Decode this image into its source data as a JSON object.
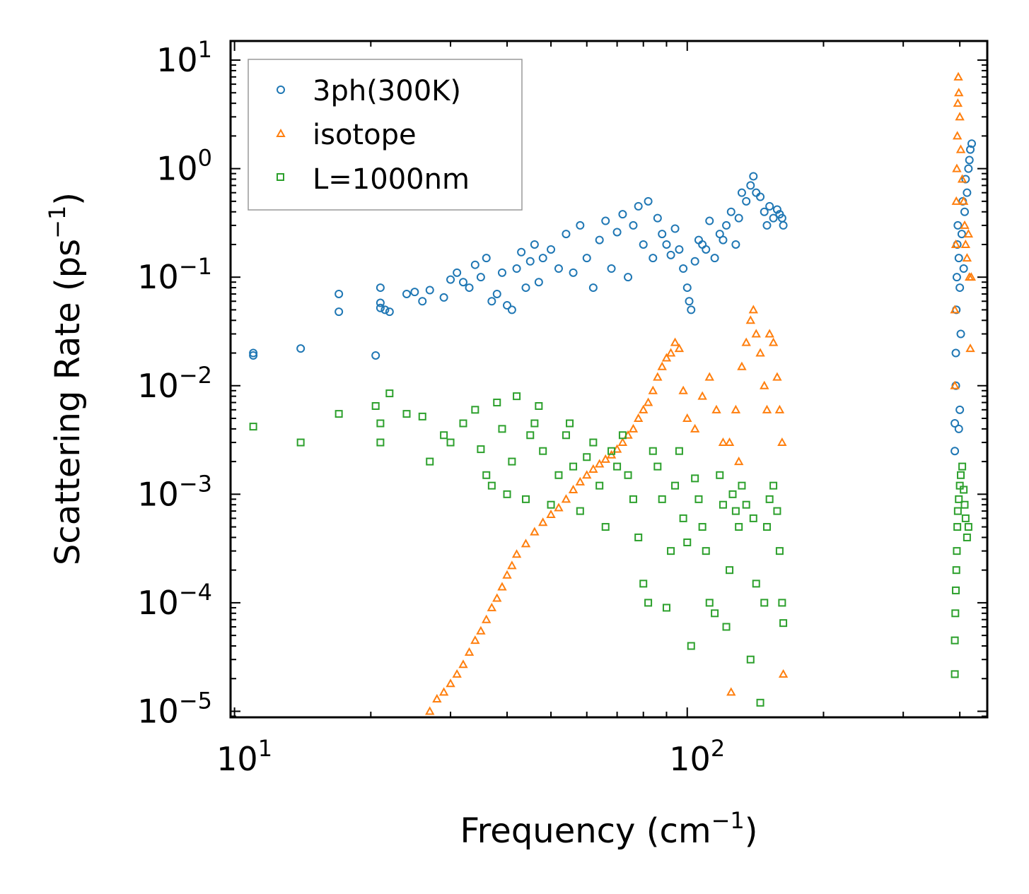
{
  "chart_data": {
    "type": "scatter",
    "title": "",
    "xlabel": "Frequency (cm",
    "xlabel_sup": "−1",
    "xlabel_end": ")",
    "ylabel": "Scattering Rate (ps",
    "ylabel_sup": "−1",
    "ylabel_end": ")",
    "xscale": "log",
    "yscale": "log",
    "xlim": [
      9.8,
      460
    ],
    "ylim": [
      8.8e-06,
      15
    ],
    "grid": false,
    "legend_position": "top-left",
    "x_ticks": [
      {
        "value": 10,
        "base": "10",
        "exp": "1"
      },
      {
        "value": 100,
        "base": "10",
        "exp": "2"
      }
    ],
    "y_ticks": [
      {
        "value": 10,
        "base": "10",
        "exp": "1"
      },
      {
        "value": 1,
        "base": "10",
        "exp": "0"
      },
      {
        "value": 0.1,
        "base": "10",
        "exp": "−1"
      },
      {
        "value": 0.01,
        "base": "10",
        "exp": "−2"
      },
      {
        "value": 0.001,
        "base": "10",
        "exp": "−3"
      },
      {
        "value": 0.0001,
        "base": "10",
        "exp": "−4"
      },
      {
        "value": 1e-05,
        "base": "10",
        "exp": "−5"
      }
    ],
    "series": [
      {
        "name": "3ph(300K)",
        "marker": "circle",
        "color": "#1f77b4",
        "points": [
          [
            11,
            0.019
          ],
          [
            11,
            0.02
          ],
          [
            14,
            0.022
          ],
          [
            17,
            0.048
          ],
          [
            17,
            0.07
          ],
          [
            20.5,
            0.019
          ],
          [
            21,
            0.052
          ],
          [
            21,
            0.058
          ],
          [
            21,
            0.08
          ],
          [
            21.5,
            0.05
          ],
          [
            22,
            0.048
          ],
          [
            24,
            0.07
          ],
          [
            25,
            0.073
          ],
          [
            26,
            0.06
          ],
          [
            27,
            0.076
          ],
          [
            29,
            0.065
          ],
          [
            30,
            0.095
          ],
          [
            31,
            0.11
          ],
          [
            32,
            0.09
          ],
          [
            33,
            0.08
          ],
          [
            34,
            0.13
          ],
          [
            35,
            0.1
          ],
          [
            36,
            0.15
          ],
          [
            37,
            0.06
          ],
          [
            38,
            0.07
          ],
          [
            39,
            0.11
          ],
          [
            40,
            0.055
          ],
          [
            41,
            0.05
          ],
          [
            42,
            0.12
          ],
          [
            43,
            0.17
          ],
          [
            44,
            0.08
          ],
          [
            45,
            0.14
          ],
          [
            46,
            0.2
          ],
          [
            47,
            0.09
          ],
          [
            48,
            0.15
          ],
          [
            50,
            0.18
          ],
          [
            52,
            0.12
          ],
          [
            54,
            0.25
          ],
          [
            56,
            0.11
          ],
          [
            58,
            0.3
          ],
          [
            60,
            0.15
          ],
          [
            62,
            0.08
          ],
          [
            64,
            0.22
          ],
          [
            66,
            0.33
          ],
          [
            68,
            0.12
          ],
          [
            70,
            0.26
          ],
          [
            72,
            0.38
          ],
          [
            74,
            0.1
          ],
          [
            76,
            0.3
          ],
          [
            78,
            0.45
          ],
          [
            80,
            0.2
          ],
          [
            82,
            0.5
          ],
          [
            84,
            0.15
          ],
          [
            86,
            0.35
          ],
          [
            88,
            0.25
          ],
          [
            90,
            0.2
          ],
          [
            92,
            0.16
          ],
          [
            94,
            0.28
          ],
          [
            96,
            0.18
          ],
          [
            98,
            0.12
          ],
          [
            100,
            0.08
          ],
          [
            101,
            0.06
          ],
          [
            102,
            0.05
          ],
          [
            104,
            0.14
          ],
          [
            106,
            0.22
          ],
          [
            108,
            0.2
          ],
          [
            110,
            0.18
          ],
          [
            112,
            0.33
          ],
          [
            115,
            0.15
          ],
          [
            118,
            0.25
          ],
          [
            120,
            0.22
          ],
          [
            122,
            0.3
          ],
          [
            125,
            0.4
          ],
          [
            128,
            0.2
          ],
          [
            130,
            0.35
          ],
          [
            132,
            0.6
          ],
          [
            135,
            0.5
          ],
          [
            138,
            0.7
          ],
          [
            140,
            0.85
          ],
          [
            142,
            0.6
          ],
          [
            145,
            0.55
          ],
          [
            148,
            0.4
          ],
          [
            150,
            0.3
          ],
          [
            152,
            0.45
          ],
          [
            155,
            0.35
          ],
          [
            158,
            0.42
          ],
          [
            160,
            0.38
          ],
          [
            162,
            0.35
          ],
          [
            163,
            0.3
          ],
          [
            390,
            0.0025
          ],
          [
            390,
            0.0045
          ],
          [
            392,
            0.01
          ],
          [
            392,
            0.02
          ],
          [
            393,
            0.05
          ],
          [
            394,
            0.1
          ],
          [
            395,
            0.2
          ],
          [
            396,
            0.3
          ],
          [
            398,
            0.004
          ],
          [
            398,
            0.15
          ],
          [
            400,
            0.006
          ],
          [
            400,
            0.08
          ],
          [
            402,
            0.03
          ],
          [
            404,
            0.25
          ],
          [
            406,
            0.5
          ],
          [
            408,
            0.12
          ],
          [
            410,
            0.4
          ],
          [
            412,
            0.8
          ],
          [
            415,
            0.6
          ],
          [
            418,
            1.0
          ],
          [
            420,
            1.2
          ],
          [
            422,
            1.5
          ],
          [
            425,
            1.7
          ]
        ]
      },
      {
        "name": "isotope",
        "marker": "triangle",
        "color": "#ff7f0e",
        "points": [
          [
            27,
            1e-05
          ],
          [
            28,
            1.3e-05
          ],
          [
            29,
            1.5e-05
          ],
          [
            30,
            1.8e-05
          ],
          [
            31,
            2.2e-05
          ],
          [
            32,
            2.7e-05
          ],
          [
            33,
            3.5e-05
          ],
          [
            34,
            4.5e-05
          ],
          [
            35,
            5.5e-05
          ],
          [
            36,
            7e-05
          ],
          [
            37,
            9e-05
          ],
          [
            38,
            0.00011
          ],
          [
            39,
            0.00014
          ],
          [
            40,
            0.00018
          ],
          [
            41,
            0.00022
          ],
          [
            42,
            0.00028
          ],
          [
            44,
            0.00035
          ],
          [
            46,
            0.00045
          ],
          [
            48,
            0.00055
          ],
          [
            50,
            0.00065
          ],
          [
            52,
            0.00075
          ],
          [
            54,
            0.0009
          ],
          [
            56,
            0.0011
          ],
          [
            58,
            0.0013
          ],
          [
            60,
            0.0015
          ],
          [
            62,
            0.0017
          ],
          [
            64,
            0.0019
          ],
          [
            66,
            0.0021
          ],
          [
            68,
            0.0023
          ],
          [
            70,
            0.0026
          ],
          [
            72,
            0.003
          ],
          [
            74,
            0.0035
          ],
          [
            76,
            0.004
          ],
          [
            78,
            0.005
          ],
          [
            80,
            0.006
          ],
          [
            82,
            0.007
          ],
          [
            84,
            0.009
          ],
          [
            86,
            0.012
          ],
          [
            88,
            0.015
          ],
          [
            90,
            0.018
          ],
          [
            92,
            0.02
          ],
          [
            94,
            0.025
          ],
          [
            96,
            0.022
          ],
          [
            98,
            0.009
          ],
          [
            100,
            0.005
          ],
          [
            104,
            0.004
          ],
          [
            108,
            0.008
          ],
          [
            112,
            0.012
          ],
          [
            116,
            0.006
          ],
          [
            120,
            0.003
          ],
          [
            124,
            0.003
          ],
          [
            128,
            0.006
          ],
          [
            130,
            0.002
          ],
          [
            132,
            0.015
          ],
          [
            135,
            0.025
          ],
          [
            138,
            0.04
          ],
          [
            140,
            0.05
          ],
          [
            142,
            0.03
          ],
          [
            145,
            0.02
          ],
          [
            148,
            0.01
          ],
          [
            150,
            0.006
          ],
          [
            152,
            0.03
          ],
          [
            155,
            0.025
          ],
          [
            158,
            0.012
          ],
          [
            160,
            0.006
          ],
          [
            162,
            0.003
          ],
          [
            163,
            2.2e-05
          ],
          [
            125,
            1.5e-05
          ],
          [
            390,
            0.01
          ],
          [
            390,
            0.05
          ],
          [
            392,
            0.2
          ],
          [
            393,
            0.5
          ],
          [
            394,
            1.0
          ],
          [
            395,
            2.0
          ],
          [
            396,
            4.0
          ],
          [
            397,
            7.0
          ],
          [
            398,
            5.0
          ],
          [
            400,
            3.0
          ],
          [
            402,
            1.5
          ],
          [
            405,
            0.8
          ],
          [
            408,
            0.5
          ],
          [
            410,
            0.3
          ],
          [
            412,
            0.2
          ],
          [
            415,
            0.15
          ],
          [
            418,
            0.25
          ],
          [
            420,
            0.1
          ],
          [
            422,
            0.022
          ],
          [
            424,
            0.1
          ]
        ]
      },
      {
        "name": "L=1000nm",
        "marker": "square",
        "color": "#2ca02c",
        "points": [
          [
            11,
            0.0042
          ],
          [
            14,
            0.003
          ],
          [
            17,
            0.0055
          ],
          [
            20.5,
            0.0065
          ],
          [
            21,
            0.003
          ],
          [
            21,
            0.0045
          ],
          [
            22,
            0.0085
          ],
          [
            24,
            0.0055
          ],
          [
            26,
            0.0052
          ],
          [
            27,
            0.002
          ],
          [
            29,
            0.0035
          ],
          [
            30,
            0.003
          ],
          [
            32,
            0.0045
          ],
          [
            34,
            0.006
          ],
          [
            35,
            0.0026
          ],
          [
            36,
            0.0015
          ],
          [
            37,
            0.0012
          ],
          [
            38,
            0.007
          ],
          [
            39,
            0.004
          ],
          [
            40,
            0.001
          ],
          [
            41,
            0.002
          ],
          [
            42,
            0.008
          ],
          [
            44,
            0.0009
          ],
          [
            45,
            0.0035
          ],
          [
            46,
            0.0045
          ],
          [
            47,
            0.0065
          ],
          [
            48,
            0.0025
          ],
          [
            50,
            0.0008
          ],
          [
            52,
            0.0015
          ],
          [
            54,
            0.0035
          ],
          [
            55,
            0.0045
          ],
          [
            56,
            0.0018
          ],
          [
            58,
            0.0007
          ],
          [
            60,
            0.0022
          ],
          [
            62,
            0.003
          ],
          [
            64,
            0.0012
          ],
          [
            66,
            0.0005
          ],
          [
            68,
            0.0025
          ],
          [
            70,
            0.0018
          ],
          [
            72,
            0.0035
          ],
          [
            74,
            0.0015
          ],
          [
            76,
            0.0009
          ],
          [
            78,
            0.0004
          ],
          [
            80,
            0.00015
          ],
          [
            82,
            0.0001
          ],
          [
            84,
            0.0025
          ],
          [
            86,
            0.0018
          ],
          [
            88,
            0.0009
          ],
          [
            90,
            9e-05
          ],
          [
            92,
            0.0003
          ],
          [
            94,
            0.0012
          ],
          [
            96,
            0.0025
          ],
          [
            98,
            0.0006
          ],
          [
            100,
            0.00036
          ],
          [
            102,
            4e-05
          ],
          [
            104,
            0.0014
          ],
          [
            106,
            0.0009
          ],
          [
            108,
            0.0005
          ],
          [
            110,
            0.0003
          ],
          [
            112,
            0.0001
          ],
          [
            115,
            8e-05
          ],
          [
            118,
            0.0015
          ],
          [
            120,
            0.0008
          ],
          [
            122,
            6e-05
          ],
          [
            124,
            0.0002
          ],
          [
            126,
            0.001
          ],
          [
            128,
            0.0007
          ],
          [
            130,
            0.0005
          ],
          [
            132,
            0.0012
          ],
          [
            135,
            0.0008
          ],
          [
            138,
            3e-05
          ],
          [
            140,
            0.0006
          ],
          [
            142,
            0.00015
          ],
          [
            145,
            1.2e-05
          ],
          [
            148,
            0.0001
          ],
          [
            150,
            0.0005
          ],
          [
            152,
            0.0009
          ],
          [
            155,
            0.0012
          ],
          [
            158,
            0.0007
          ],
          [
            160,
            0.0003
          ],
          [
            162,
            0.0001
          ],
          [
            163,
            6.5e-05
          ],
          [
            390,
            2.2e-05
          ],
          [
            390,
            4.5e-05
          ],
          [
            391,
            8e-05
          ],
          [
            392,
            0.00013
          ],
          [
            393,
            0.0002
          ],
          [
            394,
            0.0003
          ],
          [
            395,
            0.0005
          ],
          [
            396,
            0.0007
          ],
          [
            398,
            0.0009
          ],
          [
            400,
            0.0012
          ],
          [
            402,
            0.0015
          ],
          [
            405,
            0.0018
          ],
          [
            408,
            0.0011
          ],
          [
            410,
            0.0008
          ],
          [
            412,
            0.0006
          ],
          [
            415,
            0.0004
          ],
          [
            418,
            0.0005
          ]
        ]
      }
    ]
  }
}
